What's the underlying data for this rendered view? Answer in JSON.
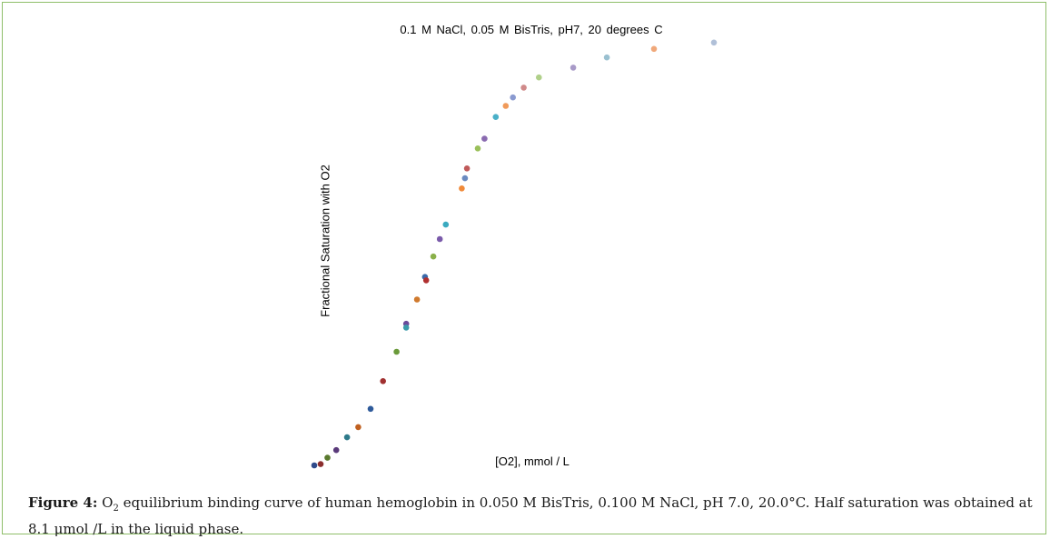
{
  "chart_data": {
    "type": "scatter",
    "title": "0.1 M NaCl,  0.05 M BisTris,  pH7,  20 degrees C",
    "xlabel": "[O2], mmol  / L",
    "ylabel": "Fractional Saturation with  O2",
    "xlim": [
      0,
      1
    ],
    "ylim": [
      0,
      1
    ],
    "grid": false,
    "axes_visible": false,
    "points": [
      {
        "x": 0.0,
        "y": 0.0,
        "color": "#2e4a8a"
      },
      {
        "x": 0.016,
        "y": 0.003,
        "color": "#8b2e2e"
      },
      {
        "x": 0.033,
        "y": 0.018,
        "color": "#5a7a2e"
      },
      {
        "x": 0.055,
        "y": 0.036,
        "color": "#5a3a7a"
      },
      {
        "x": 0.082,
        "y": 0.066,
        "color": "#2e7a8a"
      },
      {
        "x": 0.11,
        "y": 0.09,
        "color": "#c06020"
      },
      {
        "x": 0.141,
        "y": 0.133,
        "color": "#2e5a9a"
      },
      {
        "x": 0.172,
        "y": 0.198,
        "color": "#a03030"
      },
      {
        "x": 0.206,
        "y": 0.267,
        "color": "#6a9a3a"
      },
      {
        "x": 0.23,
        "y": 0.333,
        "color": "#6a4a9a"
      },
      {
        "x": 0.23,
        "y": 0.324,
        "color": "#3a9aaa"
      },
      {
        "x": 0.257,
        "y": 0.39,
        "color": "#d07a2e"
      },
      {
        "x": 0.277,
        "y": 0.443,
        "color": "#3a6aaa"
      },
      {
        "x": 0.28,
        "y": 0.435,
        "color": "#b03030"
      },
      {
        "x": 0.298,
        "y": 0.491,
        "color": "#8ab04a"
      },
      {
        "x": 0.314,
        "y": 0.532,
        "color": "#7a5aaa"
      },
      {
        "x": 0.329,
        "y": 0.566,
        "color": "#3aaac0"
      },
      {
        "x": 0.369,
        "y": 0.651,
        "color": "#f08a3a"
      },
      {
        "x": 0.377,
        "y": 0.675,
        "color": "#6a8ac0"
      },
      {
        "x": 0.382,
        "y": 0.698,
        "color": "#c05a5a"
      },
      {
        "x": 0.409,
        "y": 0.745,
        "color": "#9ac05a"
      },
      {
        "x": 0.426,
        "y": 0.768,
        "color": "#8a6ab0"
      },
      {
        "x": 0.454,
        "y": 0.819,
        "color": "#4ab0c8"
      },
      {
        "x": 0.479,
        "y": 0.845,
        "color": "#f09a5a"
      },
      {
        "x": 0.497,
        "y": 0.865,
        "color": "#8a9ad0"
      },
      {
        "x": 0.524,
        "y": 0.888,
        "color": "#d08a8a"
      },
      {
        "x": 0.562,
        "y": 0.912,
        "color": "#b0d08a"
      },
      {
        "x": 0.648,
        "y": 0.935,
        "color": "#a89ac8"
      },
      {
        "x": 0.732,
        "y": 0.959,
        "color": "#9ac0d0"
      },
      {
        "x": 0.85,
        "y": 0.979,
        "color": "#f0a87a"
      },
      {
        "x": 1.0,
        "y": 0.994,
        "color": "#b0c0d8"
      }
    ]
  },
  "caption": {
    "label": "Figure 4:",
    "o_letter": "O",
    "o_sub": "2",
    "text": " equilibrium binding curve of human hemoglobin in 0.050 M BisTris, 0.100 M NaCl, pH 7.0, 20.0°C.  Half saturation was obtained at 8.1 μmol /L in the liquid phase."
  },
  "frame_color": "#8fbf6a"
}
